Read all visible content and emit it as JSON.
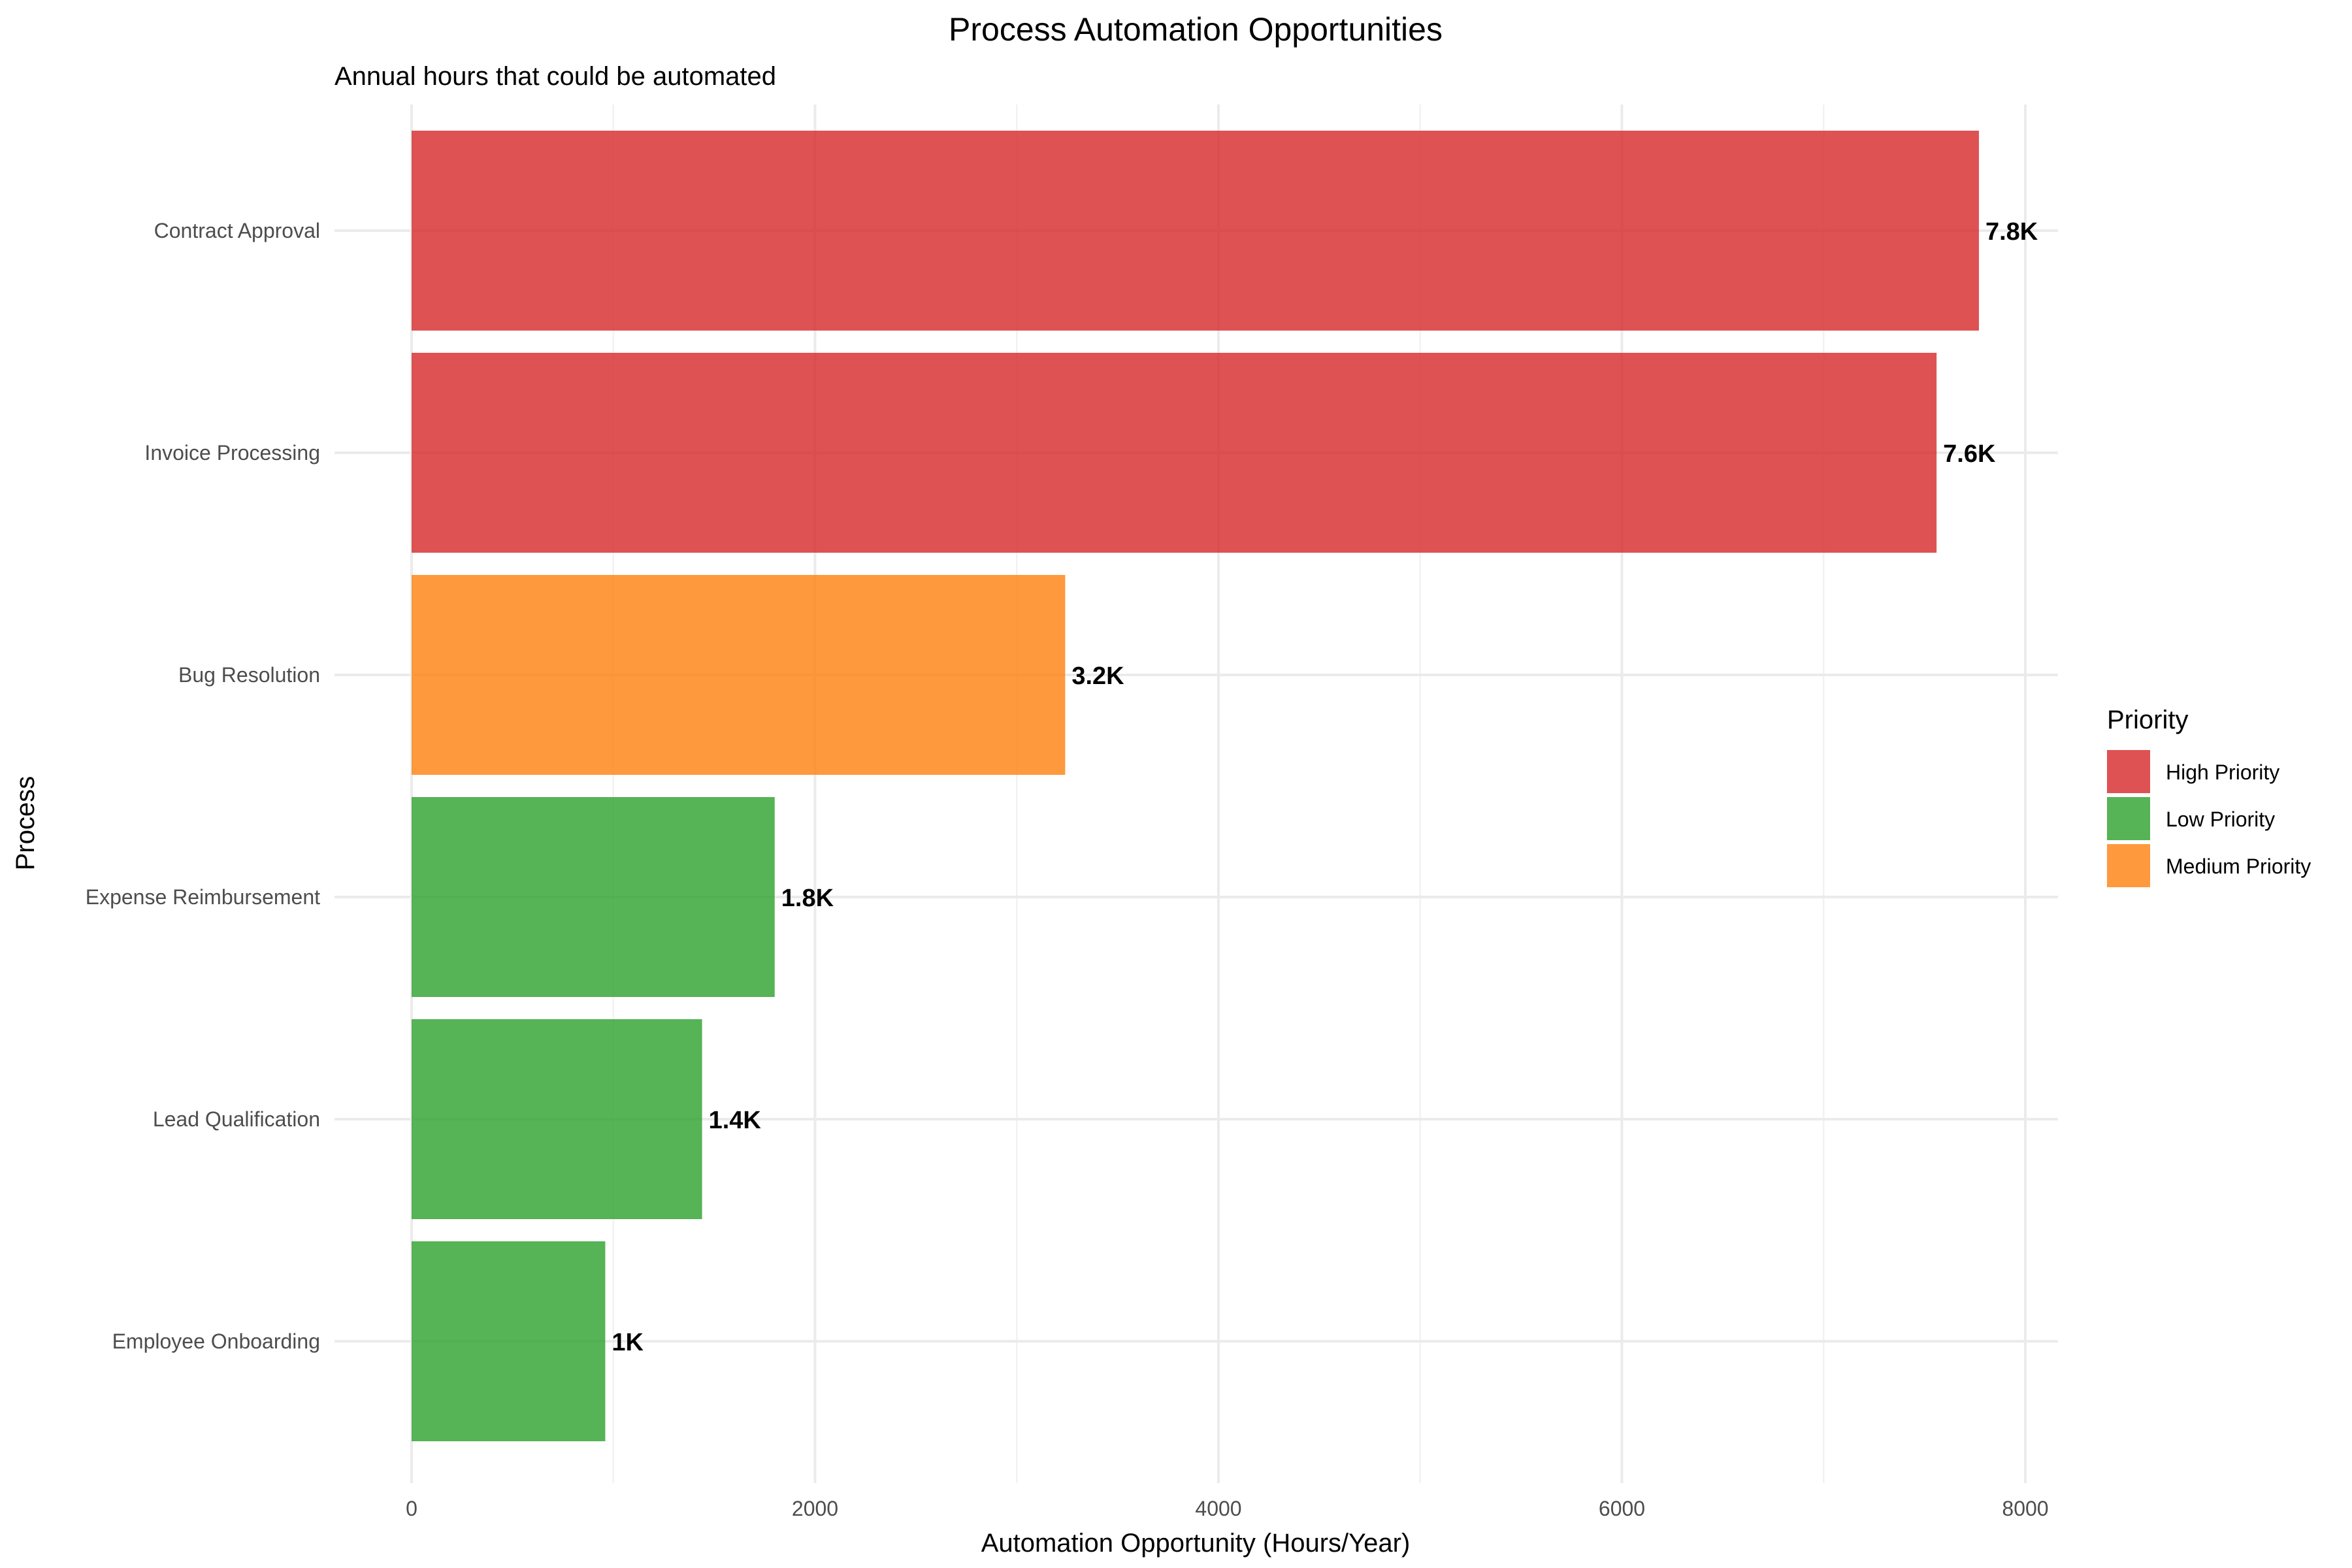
{
  "chart_data": {
    "type": "bar",
    "orientation": "horizontal",
    "title": "Process Automation Opportunities",
    "subtitle": "Annual hours that could be automated",
    "xlabel": "Automation Opportunity (Hours/Year)",
    "ylabel": "Process",
    "xlim": [
      0,
      8160
    ],
    "xticks": [
      0,
      2000,
      4000,
      6000,
      8000
    ],
    "xtick_labels": [
      "0",
      "2000",
      "4000",
      "6000",
      "8000"
    ],
    "grid": true,
    "categories": [
      "Contract Approval",
      "Invoice Processing",
      "Bug Resolution",
      "Expense Reimbursement",
      "Lead Qualification",
      "Employee Onboarding"
    ],
    "values": [
      7770,
      7560,
      3240,
      1800,
      1440,
      960
    ],
    "value_labels": [
      "7.8K",
      "7.6K",
      "3.2K",
      "1.8K",
      "1.4K",
      "1K"
    ],
    "priority": [
      "High Priority",
      "High Priority",
      "Medium Priority",
      "Low Priority",
      "Low Priority",
      "Low Priority"
    ],
    "legend": {
      "title": "Priority",
      "placement": "right",
      "entries": [
        {
          "label": "High Priority",
          "color": "#d62728"
        },
        {
          "label": "Low Priority",
          "color": "#2ca02c"
        },
        {
          "label": "Medium Priority",
          "color": "#ff7f0e"
        }
      ]
    }
  }
}
